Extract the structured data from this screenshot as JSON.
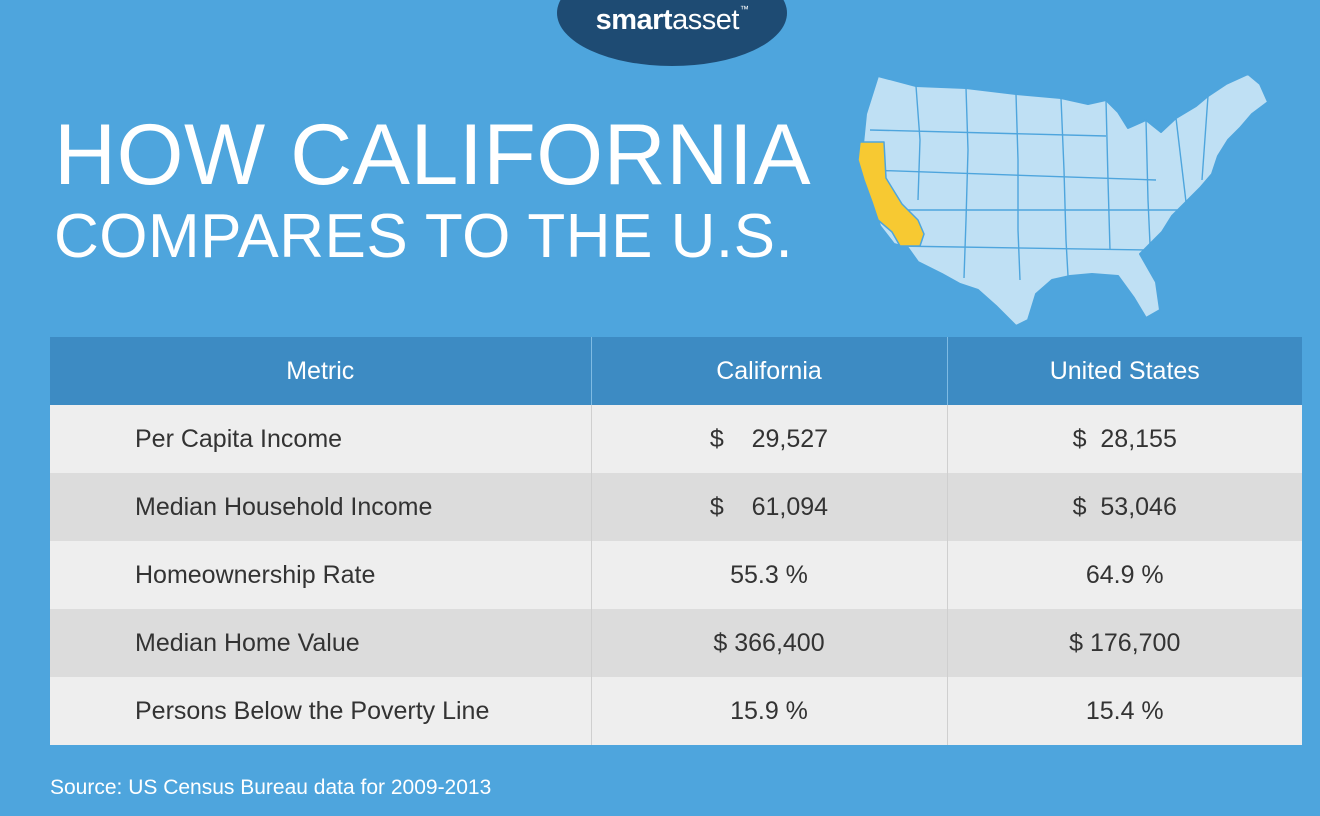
{
  "brand": {
    "name_part1": "smart",
    "name_part2": "asset",
    "trademark": "™"
  },
  "title": {
    "line1": "HOW CALIFORNIA",
    "line2": "COMPARES TO THE U.S."
  },
  "map": {
    "icon": "us-map-icon",
    "highlight_state": "California",
    "highlight_color": "#f7c932",
    "base_color": "#bfe0f4"
  },
  "colors": {
    "background": "#4ea5dd",
    "header": "#3d8bc3",
    "logo_bg": "#1e4b73"
  },
  "chart_data": {
    "type": "table",
    "columns": [
      "Metric",
      "California",
      "United States"
    ],
    "rows": [
      {
        "metric": "Per Capita Income",
        "california": "$    29,527",
        "us": "$  28,155"
      },
      {
        "metric": "Median Household Income",
        "california": "$    61,094",
        "us": "$  53,046"
      },
      {
        "metric": "Homeownership Rate",
        "california": "55.3 %",
        "us": "64.9 %"
      },
      {
        "metric": "Median Home Value",
        "california": "$ 366,400",
        "us": "$ 176,700"
      },
      {
        "metric": "Persons Below the Poverty Line",
        "california": "15.9 %",
        "us": "15.4 %"
      }
    ]
  },
  "source": "Source: US Census Bureau data for 2009-2013"
}
